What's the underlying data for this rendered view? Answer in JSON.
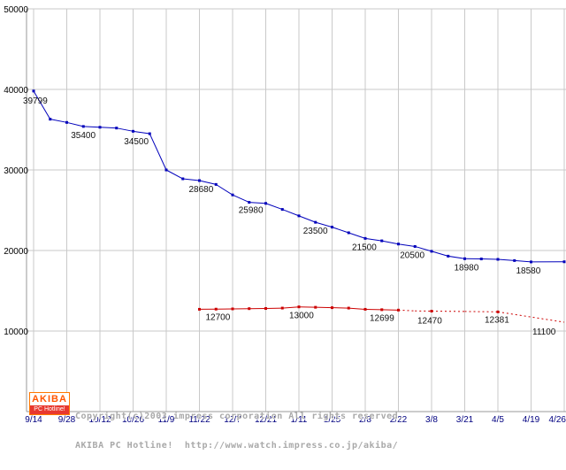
{
  "chart_data": {
    "type": "line",
    "title": "",
    "x_ticks": [
      "9/14",
      "9/28",
      "10/12",
      "10/26",
      "11/9",
      "11/22",
      "12/7",
      "12/21",
      "1/11",
      "1/25",
      "2/8",
      "2/22",
      "3/8",
      "3/21",
      "4/5",
      "4/19",
      "4/26"
    ],
    "y_ticks": [
      50000,
      40000,
      30000,
      20000,
      10000
    ],
    "ylim": [
      0,
      50000
    ],
    "grid": true,
    "legend": "none",
    "axis_colors": {
      "x_labels": "#000080",
      "y_labels": "#000000",
      "grid": "#c9c9c9",
      "axis": "#999999",
      "data_labels": "#111111"
    },
    "series": [
      {
        "name": "blue-price-line",
        "color": "#0000bb",
        "style": "solid",
        "points": [
          [
            0,
            39799
          ],
          [
            0.5,
            36300
          ],
          [
            1,
            35900
          ],
          [
            1.5,
            35400
          ],
          [
            2,
            35300
          ],
          [
            2.5,
            35200
          ],
          [
            3,
            34800
          ],
          [
            3.5,
            34500
          ],
          [
            4,
            30000
          ],
          [
            4.5,
            28900
          ],
          [
            5,
            28680
          ],
          [
            5.5,
            28200
          ],
          [
            6,
            26900
          ],
          [
            6.5,
            25980
          ],
          [
            7,
            25850
          ],
          [
            7.5,
            25100
          ],
          [
            8,
            24300
          ],
          [
            8.5,
            23500
          ],
          [
            9,
            22900
          ],
          [
            9.5,
            22200
          ],
          [
            10,
            21500
          ],
          [
            10.5,
            21200
          ],
          [
            11,
            20800
          ],
          [
            11.5,
            20500
          ],
          [
            12,
            19900
          ],
          [
            12.5,
            19300
          ],
          [
            13,
            18980
          ],
          [
            13.5,
            18950
          ],
          [
            14,
            18900
          ],
          [
            14.5,
            18750
          ],
          [
            15,
            18580
          ],
          [
            16,
            18600
          ]
        ],
        "labels": [
          [
            0,
            39799,
            "39799",
            -12,
            14
          ],
          [
            1.5,
            35400,
            "35400",
            -14,
            13
          ],
          [
            3.5,
            34500,
            "34500",
            -29,
            12
          ],
          [
            5,
            28680,
            "28680",
            -12,
            13
          ],
          [
            6.5,
            25980,
            "25980",
            -12,
            12
          ],
          [
            8.5,
            23500,
            "23500",
            -14,
            13
          ],
          [
            10,
            21500,
            "21500",
            -15,
            13
          ],
          [
            11.5,
            20500,
            "20500",
            -17,
            13
          ],
          [
            13,
            18980,
            "18980",
            -12,
            13
          ],
          [
            15,
            18580,
            "18580",
            -17,
            13
          ]
        ]
      },
      {
        "name": "red-price-line",
        "color": "#cc0000",
        "style": "solid-then-dashed",
        "points": [
          [
            5,
            12700,
            0
          ],
          [
            5.5,
            12720,
            0
          ],
          [
            6,
            12750,
            0
          ],
          [
            6.5,
            12780,
            0
          ],
          [
            7,
            12800,
            0
          ],
          [
            7.5,
            12850,
            0
          ],
          [
            8,
            13000,
            0
          ],
          [
            8.5,
            12950,
            0
          ],
          [
            9,
            12900,
            0
          ],
          [
            9.5,
            12850,
            0
          ],
          [
            10,
            12699,
            0
          ],
          [
            10.5,
            12650,
            0
          ],
          [
            11,
            12600,
            0
          ],
          [
            11.5,
            12500,
            1,
            0
          ],
          [
            12,
            12470,
            1
          ],
          [
            13,
            12430,
            1,
            0
          ],
          [
            14,
            12381,
            1
          ],
          [
            16,
            11100,
            1,
            0
          ]
        ],
        "labels": [
          [
            5,
            12700,
            "12700",
            7,
            12
          ],
          [
            8,
            13000,
            "13000",
            -11,
            13
          ],
          [
            10,
            12699,
            "12699",
            5,
            13
          ],
          [
            12,
            12470,
            "12470",
            -16,
            14
          ],
          [
            14,
            12381,
            "12381",
            -15,
            12
          ],
          [
            16,
            11100,
            "11100",
            -36,
            14
          ]
        ]
      }
    ]
  },
  "footer": {
    "logo_top": "AKIBA",
    "logo_bottom": "PC Hotline!",
    "copyright_line1": "Copyright(c)2003 impress corporation All rights reserved.",
    "copyright_line2": "AKIBA PC Hotline!  http://www.watch.impress.co.jp/akiba/"
  }
}
